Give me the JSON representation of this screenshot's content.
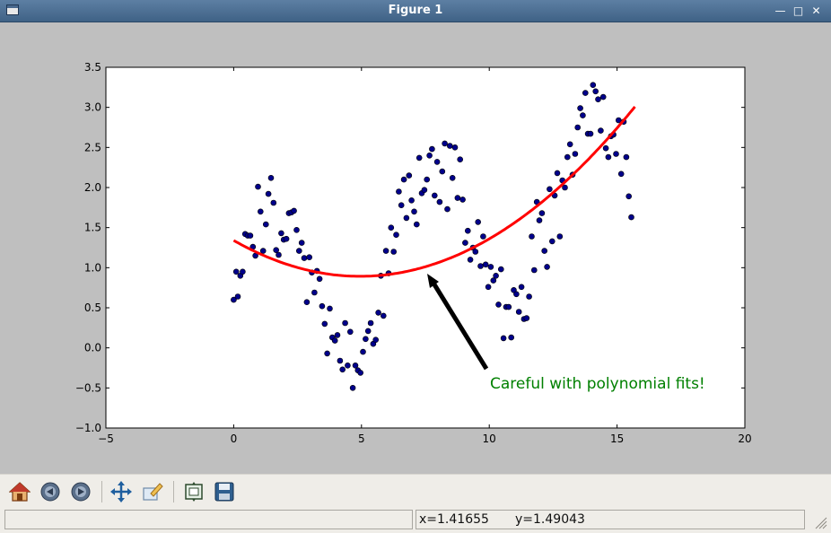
{
  "window": {
    "title": "Figure 1",
    "icon": "app-window-icon",
    "controls": [
      "minimize-icon",
      "maximize-icon",
      "close-icon"
    ]
  },
  "colors": {
    "series_points": "#00008b",
    "fit_curve": "#ff0000",
    "annotation_text": "#008000",
    "arrow": "#000000",
    "plot_bg": "#ffffff",
    "canvas_bg": "#bfbfbf"
  },
  "chart_data": {
    "type": "scatter",
    "title": "",
    "xlabel": "",
    "ylabel": "",
    "xlim": [
      -5,
      20
    ],
    "ylim": [
      -1.0,
      3.5
    ],
    "grid": false,
    "x_ticks": [
      "−5",
      "0",
      "5",
      "10",
      "15",
      "20"
    ],
    "x_tick_values": [
      -5,
      0,
      5,
      10,
      15,
      20
    ],
    "y_ticks": [
      "−1.0",
      "−0.5",
      "0.0",
      "0.5",
      "1.0",
      "1.5",
      "2.0",
      "2.5",
      "3.0",
      "3.5"
    ],
    "y_tick_values": [
      -1.0,
      -0.5,
      0.0,
      0.5,
      1.0,
      1.5,
      2.0,
      2.5,
      3.0,
      3.5
    ],
    "series": [
      {
        "kind": "scatter",
        "color": "#00008b",
        "points": [
          [
            0.0,
            0.6
          ],
          [
            0.1,
            0.95
          ],
          [
            0.16,
            0.64
          ],
          [
            0.26,
            0.9
          ],
          [
            0.35,
            0.95
          ],
          [
            0.45,
            1.42
          ],
          [
            0.55,
            1.4
          ],
          [
            0.65,
            1.4
          ],
          [
            0.75,
            1.26
          ],
          [
            0.85,
            1.15
          ],
          [
            0.95,
            2.01
          ],
          [
            1.05,
            1.7
          ],
          [
            1.15,
            1.21
          ],
          [
            1.26,
            1.54
          ],
          [
            1.36,
            1.92
          ],
          [
            1.46,
            2.12
          ],
          [
            1.56,
            1.81
          ],
          [
            1.66,
            1.22
          ],
          [
            1.76,
            1.16
          ],
          [
            1.86,
            1.43
          ],
          [
            1.96,
            1.35
          ],
          [
            2.06,
            1.36
          ],
          [
            2.16,
            1.68
          ],
          [
            2.26,
            1.69
          ],
          [
            2.36,
            1.71
          ],
          [
            2.46,
            1.47
          ],
          [
            2.56,
            1.21
          ],
          [
            2.66,
            1.31
          ],
          [
            2.76,
            1.12
          ],
          [
            2.86,
            0.57
          ],
          [
            2.96,
            1.13
          ],
          [
            3.06,
            0.94
          ],
          [
            3.16,
            0.69
          ],
          [
            3.26,
            0.96
          ],
          [
            3.36,
            0.86
          ],
          [
            3.46,
            0.52
          ],
          [
            3.56,
            0.3
          ],
          [
            3.66,
            -0.07
          ],
          [
            3.76,
            0.49
          ],
          [
            3.86,
            0.13
          ],
          [
            3.96,
            0.09
          ],
          [
            4.06,
            0.16
          ],
          [
            4.16,
            -0.16
          ],
          [
            4.26,
            -0.27
          ],
          [
            4.36,
            0.31
          ],
          [
            4.46,
            -0.22
          ],
          [
            4.56,
            0.2
          ],
          [
            4.66,
            -0.5
          ],
          [
            4.76,
            -0.22
          ],
          [
            4.86,
            -0.28
          ],
          [
            4.96,
            -0.31
          ],
          [
            5.06,
            -0.05
          ],
          [
            5.16,
            0.11
          ],
          [
            5.26,
            0.21
          ],
          [
            5.36,
            0.31
          ],
          [
            5.46,
            0.05
          ],
          [
            5.56,
            0.1
          ],
          [
            5.66,
            0.44
          ],
          [
            5.76,
            0.9
          ],
          [
            5.86,
            0.4
          ],
          [
            5.96,
            1.21
          ],
          [
            6.06,
            0.93
          ],
          [
            6.16,
            1.5
          ],
          [
            6.26,
            1.2
          ],
          [
            6.36,
            1.41
          ],
          [
            6.46,
            1.95
          ],
          [
            6.56,
            1.78
          ],
          [
            6.66,
            2.1
          ],
          [
            6.76,
            1.62
          ],
          [
            6.86,
            2.15
          ],
          [
            6.96,
            1.84
          ],
          [
            7.06,
            1.7
          ],
          [
            7.16,
            1.54
          ],
          [
            7.26,
            2.37
          ],
          [
            7.36,
            1.93
          ],
          [
            7.46,
            1.97
          ],
          [
            7.56,
            2.1
          ],
          [
            7.66,
            2.4
          ],
          [
            7.76,
            2.48
          ],
          [
            7.86,
            1.9
          ],
          [
            7.96,
            2.32
          ],
          [
            8.06,
            1.82
          ],
          [
            8.16,
            2.2
          ],
          [
            8.26,
            2.55
          ],
          [
            8.36,
            1.73
          ],
          [
            8.46,
            2.52
          ],
          [
            8.56,
            2.12
          ],
          [
            8.66,
            2.5
          ],
          [
            8.76,
            1.87
          ],
          [
            8.86,
            2.35
          ],
          [
            8.96,
            1.85
          ],
          [
            9.06,
            1.31
          ],
          [
            9.16,
            1.46
          ],
          [
            9.26,
            1.1
          ],
          [
            9.36,
            1.25
          ],
          [
            9.46,
            1.2
          ],
          [
            9.56,
            1.57
          ],
          [
            9.66,
            1.02
          ],
          [
            9.76,
            1.39
          ],
          [
            9.86,
            1.04
          ],
          [
            9.96,
            0.76
          ],
          [
            10.06,
            1.01
          ],
          [
            10.16,
            0.84
          ],
          [
            10.26,
            0.9
          ],
          [
            10.36,
            0.54
          ],
          [
            10.46,
            0.98
          ],
          [
            10.56,
            0.12
          ],
          [
            10.66,
            0.51
          ],
          [
            10.76,
            0.51
          ],
          [
            10.86,
            0.13
          ],
          [
            10.96,
            0.72
          ],
          [
            11.06,
            0.67
          ],
          [
            11.16,
            0.45
          ],
          [
            11.26,
            0.76
          ],
          [
            11.36,
            0.36
          ],
          [
            11.46,
            0.37
          ],
          [
            11.56,
            0.64
          ],
          [
            11.66,
            1.39
          ],
          [
            11.76,
            0.97
          ],
          [
            11.86,
            1.82
          ],
          [
            11.96,
            1.59
          ],
          [
            12.06,
            1.68
          ],
          [
            12.16,
            1.21
          ],
          [
            12.26,
            1.01
          ],
          [
            12.36,
            1.98
          ],
          [
            12.46,
            1.33
          ],
          [
            12.56,
            1.9
          ],
          [
            12.66,
            2.18
          ],
          [
            12.76,
            1.39
          ],
          [
            12.86,
            2.09
          ],
          [
            12.96,
            2.0
          ],
          [
            13.06,
            2.38
          ],
          [
            13.16,
            2.54
          ],
          [
            13.26,
            2.16
          ],
          [
            13.36,
            2.42
          ],
          [
            13.46,
            2.75
          ],
          [
            13.56,
            2.99
          ],
          [
            13.66,
            2.9
          ],
          [
            13.76,
            3.18
          ],
          [
            13.86,
            2.67
          ],
          [
            13.96,
            2.67
          ],
          [
            14.06,
            3.28
          ],
          [
            14.16,
            3.2
          ],
          [
            14.26,
            3.1
          ],
          [
            14.36,
            2.71
          ],
          [
            14.46,
            3.13
          ],
          [
            14.56,
            2.49
          ],
          [
            14.66,
            2.38
          ],
          [
            14.76,
            2.64
          ],
          [
            14.86,
            2.66
          ],
          [
            14.96,
            2.42
          ],
          [
            15.06,
            2.84
          ],
          [
            15.16,
            2.17
          ],
          [
            15.26,
            2.82
          ],
          [
            15.36,
            2.38
          ],
          [
            15.46,
            1.89
          ],
          [
            15.56,
            1.63
          ]
        ]
      },
      {
        "kind": "line",
        "color": "#ff0000",
        "polynomial": {
          "a": 0.0183,
          "b": -0.181,
          "c": 1.34
        },
        "x_range": [
          0,
          15.7
        ]
      }
    ],
    "annotation": {
      "text": "Careful with polynomial fits!",
      "arrow_tip": [
        7.5,
        1.0
      ],
      "text_at": [
        10.0,
        -0.5
      ],
      "color": "#008000"
    }
  },
  "toolbar": {
    "buttons": [
      {
        "name": "home-button",
        "icon": "home-icon"
      },
      {
        "name": "back-button",
        "icon": "back-arrow-icon"
      },
      {
        "name": "forward-button",
        "icon": "forward-arrow-icon"
      },
      {
        "name": "pan-button",
        "icon": "pan-arrows-icon"
      },
      {
        "name": "zoom-button",
        "icon": "zoom-rect-icon"
      },
      {
        "name": "configure-subplots-button",
        "icon": "subplots-icon"
      },
      {
        "name": "save-button",
        "icon": "floppy-disk-icon"
      }
    ]
  },
  "status": {
    "message": "",
    "x_readout": "x=1.41655",
    "y_readout": "y=1.49043"
  }
}
